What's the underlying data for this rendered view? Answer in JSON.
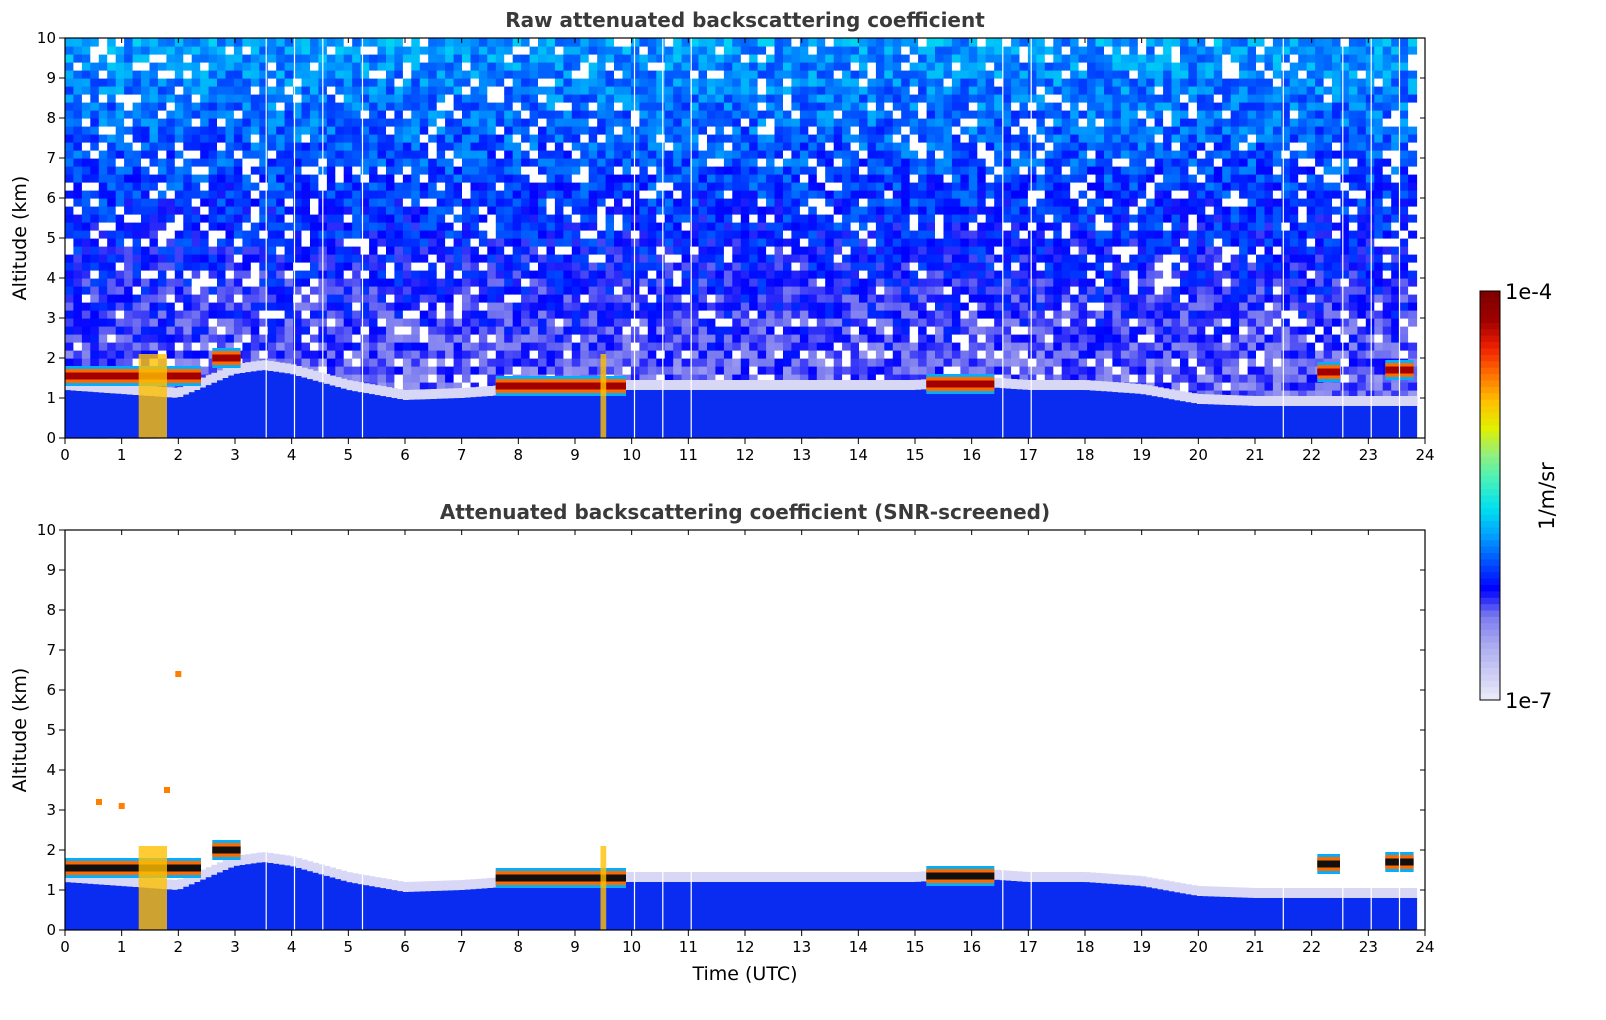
{
  "chart_data": [
    {
      "type": "heatmap",
      "title": "Raw attenuated backscattering coefficient",
      "xlabel": "",
      "ylabel": "Altitude (km)",
      "xlim": [
        0,
        24
      ],
      "ylim": [
        0,
        10
      ],
      "x_ticks": [
        "0",
        "1",
        "2",
        "3",
        "4",
        "5",
        "6",
        "7",
        "8",
        "9",
        "10",
        "11",
        "12",
        "13",
        "14",
        "15",
        "16",
        "17",
        "18",
        "19",
        "20",
        "21",
        "22",
        "23",
        "24"
      ],
      "y_ticks": [
        "0",
        "1",
        "2",
        "3",
        "4",
        "5",
        "6",
        "7",
        "8",
        "9",
        "10"
      ],
      "boundary_layer_top_km": {
        "x": [
          0,
          2,
          2.5,
          3,
          3.5,
          4,
          5,
          6,
          7,
          8,
          9,
          10,
          11,
          12,
          13,
          14,
          15,
          16,
          17,
          18,
          19,
          20,
          21,
          22,
          23,
          23.8
        ],
        "y": [
          1.2,
          1.0,
          1.3,
          1.6,
          1.7,
          1.6,
          1.2,
          0.95,
          1.0,
          1.1,
          1.2,
          1.2,
          1.2,
          1.2,
          1.2,
          1.2,
          1.2,
          1.3,
          1.2,
          1.2,
          1.1,
          0.85,
          0.8,
          0.8,
          0.8,
          0.8
        ]
      },
      "cloud_layers": [
        {
          "x_start": 0.0,
          "x_end": 2.4,
          "alt_km": 1.55
        },
        {
          "x_start": 2.6,
          "x_end": 3.1,
          "alt_km": 2.0
        },
        {
          "x_start": 7.6,
          "x_end": 9.9,
          "alt_km": 1.3
        },
        {
          "x_start": 15.2,
          "x_end": 16.4,
          "alt_km": 1.35
        },
        {
          "x_start": 22.1,
          "x_end": 22.5,
          "alt_km": 1.65
        },
        {
          "x_start": 23.3,
          "x_end": 23.8,
          "alt_km": 1.7
        }
      ],
      "data_gaps_utc": [
        3.55,
        4.05,
        4.55,
        5.25,
        10.05,
        10.55,
        11.05,
        16.55,
        17.05,
        21.5,
        22.55,
        23.05,
        23.55
      ],
      "noisy_upper_region": true
    },
    {
      "type": "heatmap",
      "title": "Attenuated backscattering coefficient (SNR-screened)",
      "xlabel": "Time (UTC)",
      "ylabel": "Altitude (km)",
      "xlim": [
        0,
        24
      ],
      "ylim": [
        0,
        10
      ],
      "x_ticks": [
        "0",
        "1",
        "2",
        "3",
        "4",
        "5",
        "6",
        "7",
        "8",
        "9",
        "10",
        "11",
        "12",
        "13",
        "14",
        "15",
        "16",
        "17",
        "18",
        "19",
        "20",
        "21",
        "22",
        "23",
        "24"
      ],
      "y_ticks": [
        "0",
        "1",
        "2",
        "3",
        "4",
        "5",
        "6",
        "7",
        "8",
        "9",
        "10"
      ],
      "boundary_layer_top_km": {
        "x": [
          0,
          2,
          2.5,
          3,
          3.5,
          4,
          5,
          6,
          7,
          8,
          9,
          10,
          11,
          12,
          13,
          14,
          15,
          16,
          17,
          18,
          19,
          20,
          21,
          22,
          23,
          23.8
        ],
        "y": [
          1.2,
          1.0,
          1.3,
          1.6,
          1.7,
          1.6,
          1.2,
          0.95,
          1.0,
          1.1,
          1.2,
          1.2,
          1.2,
          1.2,
          1.2,
          1.2,
          1.2,
          1.3,
          1.2,
          1.2,
          1.1,
          0.85,
          0.8,
          0.8,
          0.8,
          0.8
        ]
      },
      "cloud_layers": [
        {
          "x_start": 0.0,
          "x_end": 2.4,
          "alt_km": 1.55
        },
        {
          "x_start": 2.6,
          "x_end": 3.1,
          "alt_km": 2.0
        },
        {
          "x_start": 7.6,
          "x_end": 9.9,
          "alt_km": 1.3
        },
        {
          "x_start": 15.2,
          "x_end": 16.4,
          "alt_km": 1.35
        },
        {
          "x_start": 22.1,
          "x_end": 22.5,
          "alt_km": 1.65
        },
        {
          "x_start": 23.3,
          "x_end": 23.8,
          "alt_km": 1.7
        }
      ],
      "isolated_returns": [
        {
          "x": 2.0,
          "alt_km": 6.4
        },
        {
          "x": 0.6,
          "alt_km": 3.2
        },
        {
          "x": 1.0,
          "alt_km": 3.1
        },
        {
          "x": 1.8,
          "alt_km": 3.5
        }
      ],
      "data_gaps_utc": [
        3.55,
        4.05,
        4.55,
        5.25,
        10.05,
        10.55,
        11.05,
        16.55,
        17.05,
        21.5,
        22.55,
        23.05,
        23.55
      ],
      "noisy_upper_region": false
    }
  ],
  "colorbar": {
    "max_label": "1e-4",
    "min_label": "1e-7",
    "units_label": "1/m/sr",
    "colors": [
      "#e8e8f8",
      "#c8c8f4",
      "#a8a8f0",
      "#7a7af0",
      "#0000ff",
      "#0050ff",
      "#00a0ff",
      "#00e0f0",
      "#40f0c0",
      "#90f080",
      "#e0f000",
      "#ffc000",
      "#ff7000",
      "#f02000",
      "#a00000",
      "#800000"
    ]
  }
}
